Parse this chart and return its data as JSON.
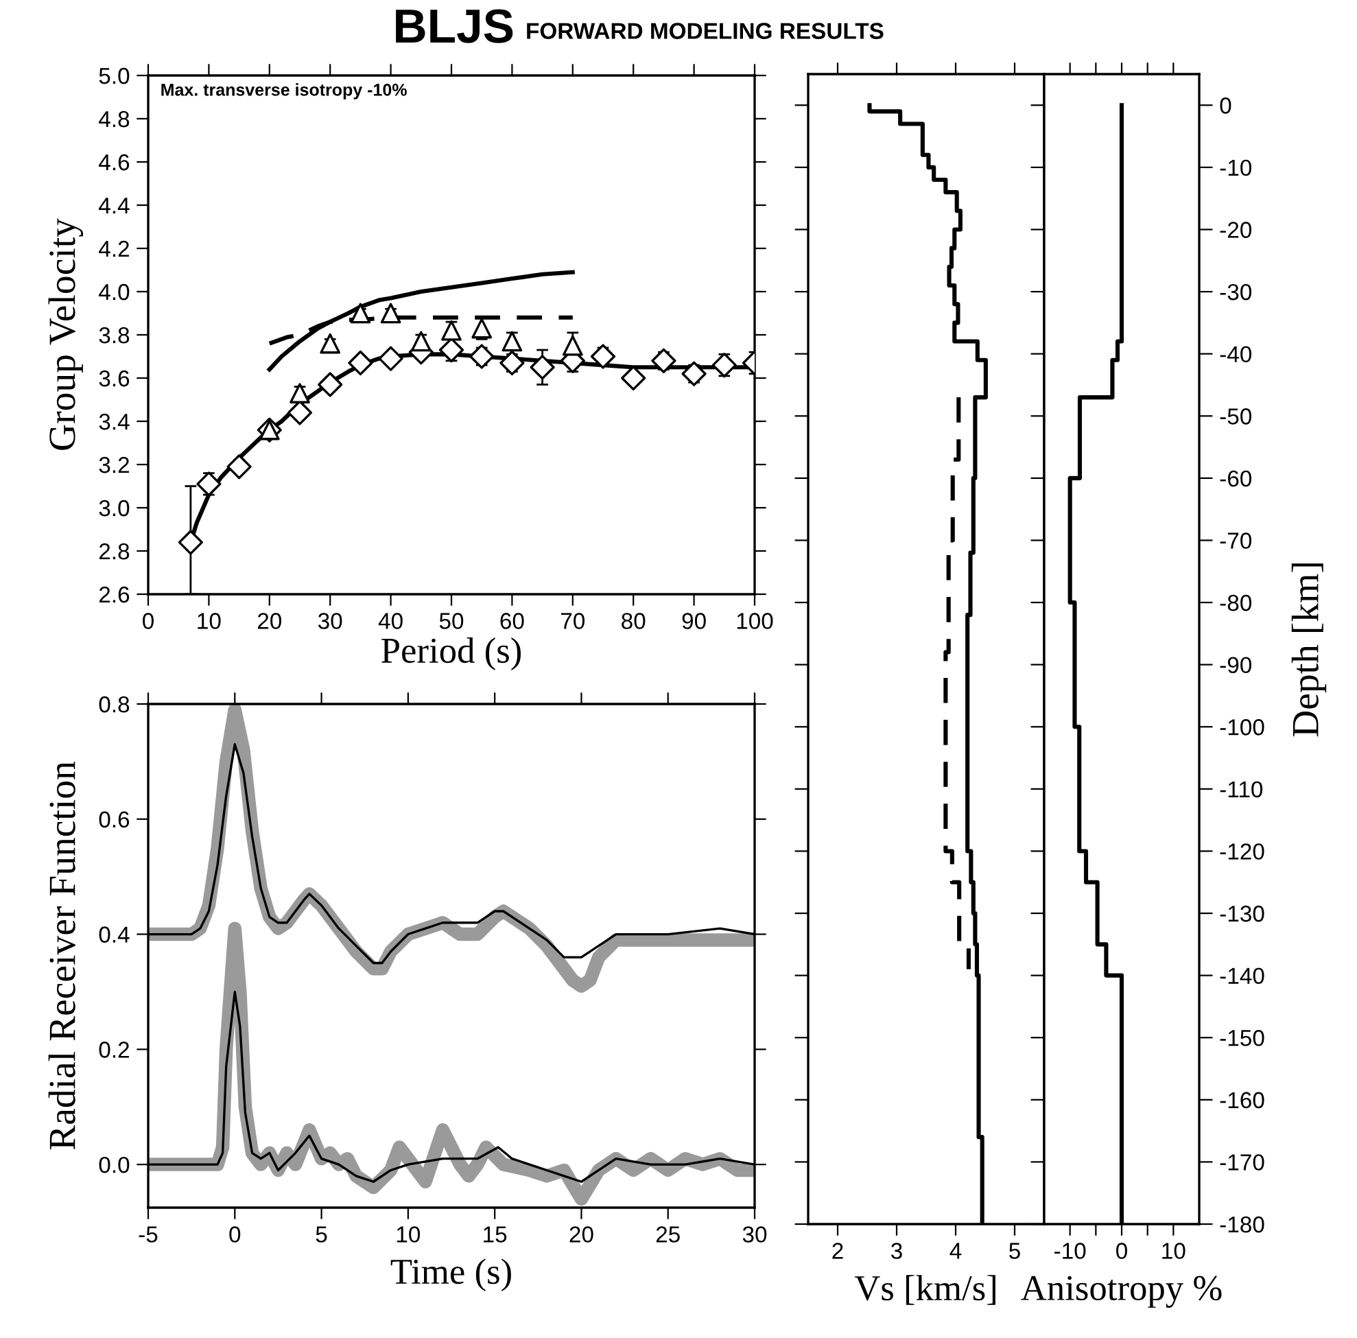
{
  "chart_data": [
    {
      "type": "scatter",
      "title": "BLJS",
      "subtitle": "FORWARD MODELING RESULTS",
      "xlabel": "Period (s)",
      "ylabel": "Group Velocity",
      "annotations": [
        "Max. transverse isotropy -10%"
      ],
      "xlim": [
        0,
        100
      ],
      "xticks": [
        0,
        10,
        20,
        30,
        40,
        50,
        60,
        70,
        80,
        90,
        100
      ],
      "ylim": [
        2.6,
        5.0
      ],
      "yticks": [
        2.6,
        2.8,
        {
          "value": 3,
          "label": "3.0"
        },
        3.2,
        3.4,
        3.6,
        3.8,
        {
          "value": 4,
          "label": "4.0"
        },
        4.2,
        4.4,
        4.6,
        4.8,
        {
          "value": 5,
          "label": "5.0"
        }
      ],
      "grid": false,
      "legend": false,
      "series": [
        {
          "type": "scatter",
          "marker": "diamond",
          "color": "#000000",
          "x": [
            7,
            10,
            15,
            20,
            25,
            30,
            35,
            40,
            45,
            50,
            55,
            60,
            65,
            70,
            75,
            80,
            85,
            90,
            95,
            100
          ],
          "values": [
            2.84,
            3.11,
            3.19,
            3.36,
            3.44,
            3.57,
            3.67,
            3.69,
            3.72,
            3.73,
            3.7,
            3.67,
            3.65,
            3.68,
            3.7,
            3.6,
            3.68,
            3.62,
            3.66,
            3.67
          ],
          "errors": [
            [
              2.6,
              3.1
            ],
            0.05,
            0.03,
            0.02,
            0.03,
            0.03,
            0.03,
            0.02,
            0.03,
            0.05,
            0.04,
            0.04,
            0.08,
            0.05,
            0.04,
            0.03,
            0.04,
            0.04,
            0.05,
            0.05
          ]
        },
        {
          "type": "scatter",
          "marker": "triangle",
          "color": "#000000",
          "x": [
            20,
            25,
            30,
            35,
            40,
            45,
            50,
            55,
            60,
            70
          ],
          "values": [
            3.36,
            3.53,
            3.76,
            3.9,
            3.9,
            3.77,
            3.82,
            3.83,
            3.77,
            3.75
          ],
          "errors": [
            null,
            0.03,
            0.02,
            0.02,
            0.02,
            0.03,
            0.04,
            0.05,
            0.04,
            0.06
          ]
        },
        {
          "type": "line",
          "line_style": "solid",
          "color": "#000000",
          "x": [
            7,
            8,
            10,
            12,
            15,
            18,
            20,
            22,
            25,
            28,
            30,
            33,
            35,
            38,
            40,
            45,
            50,
            55,
            60,
            65,
            70,
            75,
            80,
            90,
            100
          ],
          "values": [
            2.84,
            2.93,
            3.06,
            3.14,
            3.23,
            3.31,
            3.36,
            3.4,
            3.48,
            3.54,
            3.58,
            3.63,
            3.66,
            3.69,
            3.7,
            3.71,
            3.71,
            3.7,
            3.69,
            3.68,
            3.67,
            3.66,
            3.65,
            3.65,
            3.65
          ]
        },
        {
          "type": "line",
          "line_style": "solid",
          "color": "#000000",
          "x": [
            20,
            22,
            25,
            28,
            30,
            33,
            35,
            38,
            40,
            45,
            50,
            55,
            60,
            65,
            70
          ],
          "values": [
            3.64,
            3.7,
            3.77,
            3.83,
            3.86,
            3.9,
            3.93,
            3.96,
            3.97,
            4.0,
            4.02,
            4.04,
            4.06,
            4.08,
            4.09
          ]
        },
        {
          "type": "line",
          "line_style": "dashed",
          "color": "#000000",
          "x": [
            20,
            23,
            25,
            28,
            30,
            33,
            35,
            40,
            50,
            60,
            70
          ],
          "values": [
            3.76,
            3.79,
            3.8,
            3.84,
            3.86,
            3.87,
            3.87,
            3.88,
            3.88,
            3.88,
            3.88
          ]
        }
      ]
    },
    {
      "type": "line",
      "xlabel": "Time (s)",
      "ylabel": "Radial Receiver Function",
      "xlim": [
        -5,
        30
      ],
      "xticks": [
        -5,
        0,
        5,
        10,
        15,
        20,
        25,
        30
      ],
      "ylim": [
        -0.075,
        0.8
      ],
      "yticks": [
        {
          "value": 0,
          "label": "0.0"
        },
        0.2,
        0.4,
        0.6,
        0.8
      ],
      "grid": false,
      "legend": false,
      "line_style": "solid",
      "series": [
        {
          "color": "#9a9a9a",
          "x": [
            -5,
            -2.5,
            -2,
            -1.5,
            -1,
            -0.5,
            0,
            0.5,
            1,
            1.5,
            2,
            2.5,
            3,
            3.5,
            4,
            4.3,
            5,
            6,
            7,
            8,
            8.5,
            9,
            10,
            11,
            12,
            13,
            14,
            15,
            15.5,
            16,
            17,
            18,
            19,
            19.5,
            20,
            20.5,
            21,
            22,
            23,
            25,
            28,
            30
          ],
          "values": [
            0.4,
            0.4,
            0.41,
            0.45,
            0.55,
            0.7,
            0.79,
            0.72,
            0.58,
            0.48,
            0.43,
            0.41,
            0.42,
            0.44,
            0.46,
            0.47,
            0.45,
            0.41,
            0.37,
            0.34,
            0.34,
            0.37,
            0.4,
            0.41,
            0.42,
            0.4,
            0.4,
            0.43,
            0.44,
            0.43,
            0.41,
            0.38,
            0.34,
            0.32,
            0.31,
            0.32,
            0.36,
            0.39,
            0.39,
            0.39,
            0.39,
            0.39
          ]
        },
        {
          "color": "#000000",
          "x": [
            -5,
            -2.5,
            -2,
            -1.5,
            -1,
            -0.5,
            0,
            0.5,
            1,
            1.5,
            2,
            2.5,
            3,
            3.5,
            4,
            4.3,
            5,
            6,
            7,
            8,
            8.5,
            9,
            10,
            11,
            12,
            13,
            14,
            15,
            15.5,
            16,
            17,
            18,
            19,
            19.5,
            20,
            21,
            22,
            23,
            25,
            28,
            30
          ],
          "values": [
            0.4,
            0.4,
            0.41,
            0.44,
            0.52,
            0.64,
            0.73,
            0.68,
            0.57,
            0.48,
            0.43,
            0.42,
            0.42,
            0.44,
            0.46,
            0.47,
            0.45,
            0.41,
            0.38,
            0.35,
            0.35,
            0.37,
            0.4,
            0.41,
            0.42,
            0.42,
            0.42,
            0.44,
            0.44,
            0.43,
            0.41,
            0.39,
            0.36,
            0.36,
            0.36,
            0.38,
            0.4,
            0.4,
            0.4,
            0.41,
            0.4
          ]
        },
        {
          "color": "#9a9a9a",
          "x": [
            -5,
            -3,
            -1,
            -0.7,
            -0.5,
            0,
            0.3,
            0.6,
            1,
            1.5,
            2,
            2.5,
            3,
            3.5,
            4.3,
            5,
            5.5,
            6,
            6.5,
            7,
            8,
            9,
            9.5,
            10,
            11,
            12,
            13,
            13.5,
            14,
            14.5,
            15.5,
            17,
            18,
            19,
            20,
            21,
            22,
            23,
            24,
            25,
            26,
            27,
            28,
            29,
            30
          ],
          "values": [
            0,
            0,
            0,
            0.03,
            0.2,
            0.41,
            0.3,
            0.1,
            0.02,
            0,
            0.02,
            -0.01,
            0.02,
            0,
            0.06,
            0.01,
            0.02,
            0,
            0.01,
            -0.02,
            -0.04,
            -0.01,
            0.03,
            0.01,
            -0.03,
            0.06,
            0,
            -0.02,
            0,
            0.03,
            0,
            -0.01,
            -0.02,
            -0.01,
            -0.06,
            -0.01,
            0.01,
            -0.01,
            0.01,
            -0.01,
            0.01,
            0,
            0.01,
            -0.01,
            -0.01
          ]
        },
        {
          "color": "#000000",
          "x": [
            -5,
            -3,
            -1,
            -0.7,
            -0.5,
            0,
            0.3,
            0.6,
            1,
            1.5,
            2,
            2.5,
            3.5,
            4.3,
            5,
            6,
            7,
            8,
            9,
            10,
            12,
            14,
            15.2,
            16,
            17,
            18,
            19,
            20,
            21,
            22,
            24,
            26,
            28,
            30
          ],
          "values": [
            0,
            0,
            0,
            0.02,
            0.17,
            0.3,
            0.24,
            0.09,
            0.02,
            0.01,
            0.02,
            -0.01,
            0.02,
            0.05,
            0.01,
            0,
            -0.02,
            -0.03,
            -0.01,
            0,
            0.01,
            0.01,
            0.03,
            0.01,
            0,
            -0.01,
            -0.02,
            -0.03,
            -0.01,
            0.01,
            0,
            0,
            0.01,
            0
          ]
        }
      ]
    },
    {
      "type": "line",
      "xlabel": "Vs [km/s]",
      "xlim": [
        1.5,
        5.5
      ],
      "xticks": [
        2,
        3,
        4,
        5
      ],
      "ylim": [
        -180,
        5
      ],
      "yticks": [
        0,
        -10,
        -20,
        -30,
        -40,
        -50,
        -60,
        -70,
        -80,
        -90,
        -100,
        -110,
        -120,
        -130,
        -140,
        -150,
        -160,
        -170,
        -180
      ],
      "tick_labels": "x",
      "grid": false,
      "legend": false,
      "series": [
        {
          "line_style": "solid",
          "color": "#000000",
          "x": [
            2.54,
            2.54,
            3.06,
            3.06,
            3.44,
            3.44,
            3.54,
            3.54,
            3.63,
            3.63,
            3.83,
            3.83,
            4.02,
            4.02,
            4.08,
            4.08,
            3.98,
            3.98,
            3.93,
            3.93,
            3.89,
            3.89,
            3.98,
            3.98,
            4.04,
            4.04,
            3.98,
            3.98,
            4.37,
            4.37,
            4.51,
            4.51,
            4.33,
            4.33,
            4.3,
            4.3,
            4.25,
            4.25,
            4.2,
            4.2,
            4.26,
            4.26,
            4.3,
            4.3,
            4.33,
            4.33,
            4.36,
            4.36,
            4.39,
            4.39,
            4.45,
            4.45
          ],
          "values": [
            0,
            -1,
            -1,
            -3,
            -3,
            -8,
            -8,
            -10,
            -10,
            -12,
            -12,
            -14,
            -14,
            -17,
            -17,
            -20,
            -20,
            -23,
            -23,
            -26,
            -26,
            -29,
            -29,
            -32,
            -32,
            -35,
            -35,
            -38,
            -38,
            -41,
            -41,
            -47,
            -47,
            -60,
            -60,
            -72,
            -72,
            -82,
            -82,
            -120,
            -120,
            -125,
            -125,
            -130,
            -130,
            -135,
            -135,
            -140,
            -140,
            -166,
            -166,
            -180
          ]
        },
        {
          "line_style": "dashed",
          "color": "#000000",
          "x": [
            4.05,
            4.05,
            3.95,
            3.95,
            3.88,
            3.88,
            3.83,
            3.83,
            3.94,
            3.94,
            4.06,
            4.06,
            4.22,
            4.22
          ],
          "values": [
            -47,
            -57,
            -57,
            -70,
            -70,
            -88,
            -88,
            -120,
            -120,
            -125,
            -125,
            -135,
            -135,
            -139
          ]
        }
      ]
    },
    {
      "type": "line",
      "xlabel": "Anisotropy %",
      "ylabel": "Depth [km]",
      "xlim": [
        -15,
        15
      ],
      "xticks": [
        -10,
        {
          "value": -5,
          "label": null
        },
        0,
        {
          "value": 5,
          "label": null
        },
        10
      ],
      "ylim": [
        -180,
        5
      ],
      "yticks": [
        0,
        -10,
        -20,
        -30,
        -40,
        -50,
        -60,
        -70,
        -80,
        -90,
        -100,
        -110,
        -120,
        -130,
        -140,
        -150,
        -160,
        -170,
        -180
      ],
      "grid": false,
      "legend": false,
      "line_style": "solid",
      "series": [
        {
          "color": "#000000",
          "x": [
            0,
            0,
            -0.8,
            -0.8,
            -1.8,
            -1.8,
            -8.1,
            -8.1,
            -10,
            -10,
            -9.1,
            -9.1,
            -8.2,
            -8.2,
            -6.9,
            -6.9,
            -4.7,
            -4.7,
            -3,
            -3,
            0,
            0
          ],
          "values": [
            0,
            -38,
            -38,
            -41,
            -41,
            -47,
            -47,
            -60,
            -60,
            -80,
            -80,
            -100,
            -100,
            -120,
            -120,
            -125,
            -125,
            -135,
            -135,
            -140,
            -140,
            -180
          ]
        }
      ]
    }
  ]
}
